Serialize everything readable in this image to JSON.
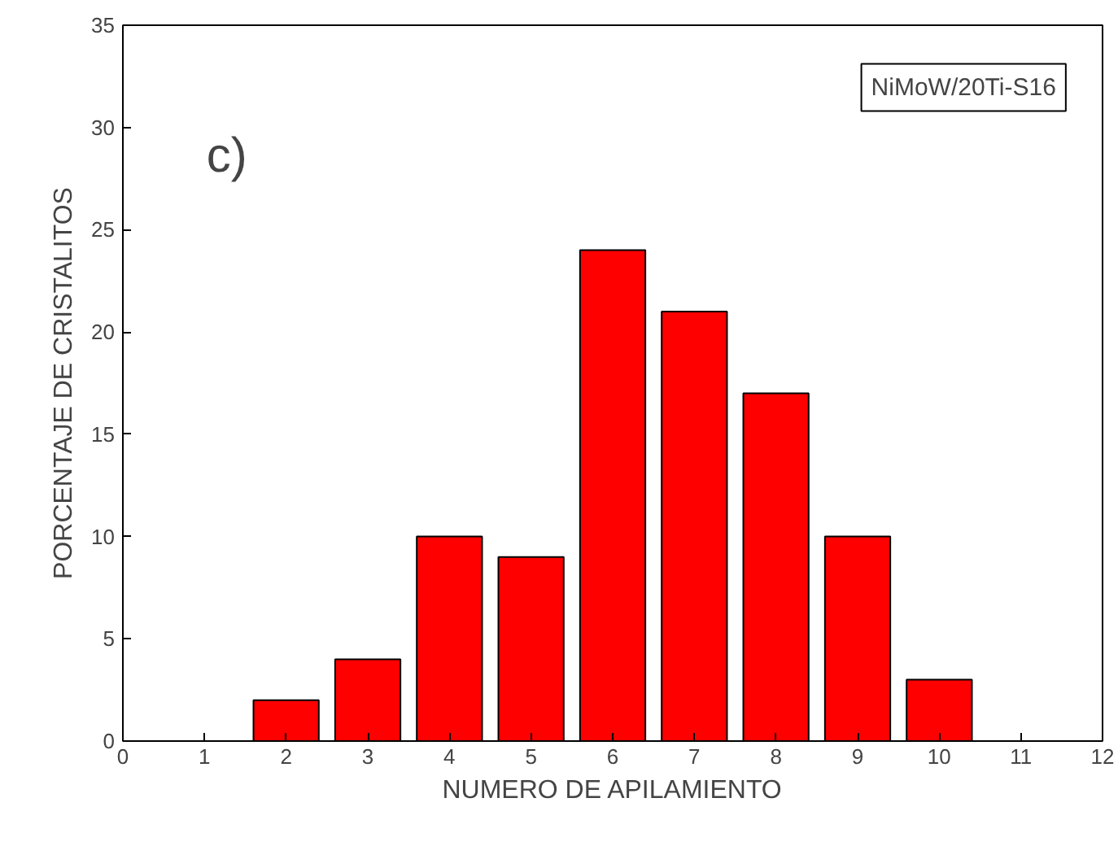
{
  "chart_data": {
    "type": "bar",
    "xlabel": "NUMERO DE APILAMIENTO",
    "ylabel": "PORCENTAJE DE CRISTALITOS",
    "x": [
      2,
      3,
      4,
      5,
      6,
      7,
      8,
      9,
      10
    ],
    "values": [
      2,
      4,
      10,
      9,
      24,
      21,
      17,
      10,
      3
    ],
    "color": "#ff0000",
    "xlim": [
      0,
      12
    ],
    "xticks": [
      0,
      1,
      2,
      3,
      4,
      5,
      6,
      7,
      8,
      9,
      10,
      11,
      12
    ],
    "ylim": [
      0,
      35
    ],
    "yticks": [
      0,
      5,
      10,
      15,
      20,
      25,
      30,
      35
    ],
    "grid": false,
    "annotations": [
      "c)",
      "NiMoW/20Ti-S16"
    ]
  }
}
